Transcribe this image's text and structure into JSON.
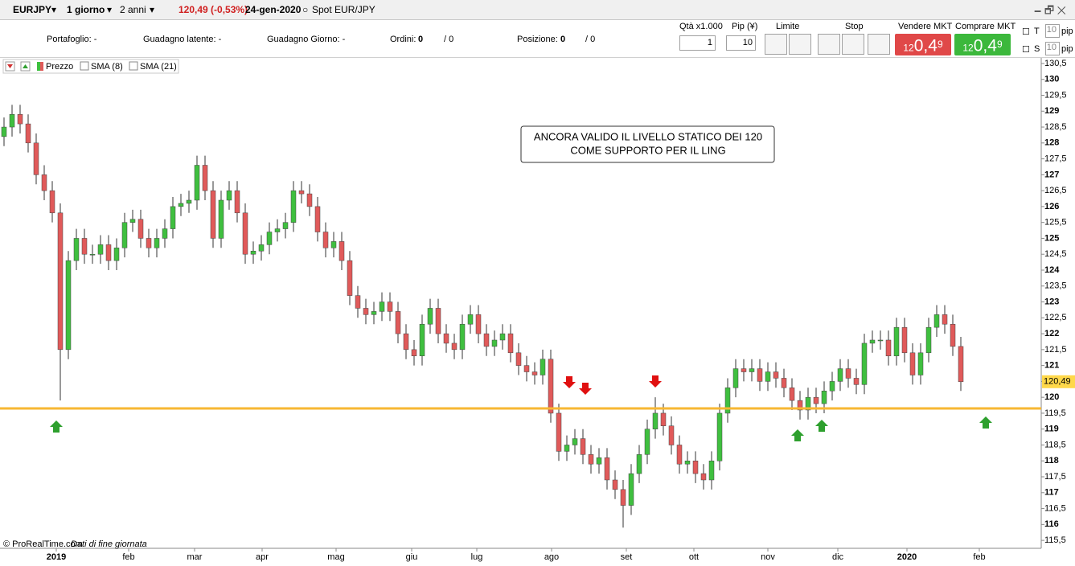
{
  "toolbar": {
    "symbol": "EURJPY",
    "interval": "1 giorno",
    "range": "2 anni",
    "last": "120,49 (-0,53%)",
    "date": "24-gen-2020",
    "instrument": "Spot EUR/JPY"
  },
  "info_bar": {
    "portfolio": "Portafoglio: -",
    "unrealized": "Guadagno latente: -",
    "daily": "Guadagno Giorno: -",
    "orders_label": "Ordini:",
    "orders": "0",
    "orders_total": "/ 0",
    "position_label": "Posizione:",
    "position": "0",
    "position_total": "/ 0"
  },
  "trade_panel": {
    "qty_label": "Qtà x1.000",
    "pip_label": "Pip (¥)",
    "qty": "1",
    "pip": "10",
    "limit": "Limite",
    "stop": "Stop",
    "sell_label": "Vendere MKT",
    "buy_label": "Comprare MKT",
    "sell_price": {
      "small": "12",
      "main": "0,4",
      "pip": "9"
    },
    "buy_price": {
      "small": "12",
      "main": "0,4",
      "pip": "9"
    },
    "t_label": "T",
    "t_pips": "10",
    "s_label": "S",
    "s_pips": "10",
    "pip_unit": "pip"
  },
  "chart_data": {
    "type": "candlestick",
    "legend": [
      "Prezzo",
      "SMA (8)",
      "SMA (21)"
    ],
    "annotation": [
      "ANCORA VALIDO IL LIVELLO STATICO DEI 120",
      "COME SUPPORTO PER IL LING"
    ],
    "source": "© ProRealTime.com",
    "note": "Dati di fine giornata",
    "up_color": "#3fbf3f",
    "down_color": "#e05a5a",
    "support": {
      "value": 119.65,
      "color": "#f7b733"
    },
    "last_price": {
      "value": 120.49,
      "label": "120,49"
    },
    "xlim": [
      -0.5,
      129
    ],
    "xticks": [
      {
        "value": 6.5,
        "label": "2019"
      },
      {
        "value": 15.5,
        "label": "feb"
      },
      {
        "value": 23.7,
        "label": "mar"
      },
      {
        "value": 32.1,
        "label": "apr"
      },
      {
        "value": 41.3,
        "label": "mag"
      },
      {
        "value": 50.7,
        "label": "giu"
      },
      {
        "value": 58.8,
        "label": "lug"
      },
      {
        "value": 68.1,
        "label": "ago"
      },
      {
        "value": 77.4,
        "label": "set"
      },
      {
        "value": 85.8,
        "label": "ott"
      },
      {
        "value": 95,
        "label": "nov"
      },
      {
        "value": 103.7,
        "label": "dic"
      },
      {
        "value": 112.3,
        "label": "2020"
      },
      {
        "value": 121.3,
        "label": "feb"
      }
    ],
    "ylim": [
      115.25,
      130.6
    ],
    "yticks": [
      {
        "value": 115.5,
        "label": "115,5"
      },
      116,
      {
        "value": 116.5,
        "label": "116,5"
      },
      117,
      {
        "value": 117.5,
        "label": "117,5"
      },
      118,
      {
        "value": 118.5,
        "label": "118,5"
      },
      119,
      {
        "value": 119.5,
        "label": "119,5"
      },
      120,
      {
        "value": 120.5,
        "label": "120,5"
      },
      121,
      {
        "value": 121.5,
        "label": "121,5"
      },
      122,
      {
        "value": 122.5,
        "label": "122,5"
      },
      123,
      {
        "value": 123.5,
        "label": "123,5"
      },
      124,
      {
        "value": 124.5,
        "label": "124,5"
      },
      125,
      {
        "value": 125.5,
        "label": "125,5"
      },
      126,
      {
        "value": 126.5,
        "label": "126,5"
      },
      127,
      {
        "value": 127.5,
        "label": "127,5"
      },
      128,
      {
        "value": 128.5,
        "label": "128,5"
      },
      129,
      {
        "value": 129.5,
        "label": "129,5"
      },
      130,
      {
        "value": 130.5,
        "label": "130,5"
      }
    ],
    "open": [
      128.2,
      128.5,
      128.9,
      128.6,
      128.0,
      127.0,
      126.5,
      125.8,
      121.5,
      124.3,
      125.0,
      124.5,
      124.5,
      124.8,
      124.3,
      124.7,
      125.5,
      125.6,
      125.0,
      124.7,
      125.0,
      125.3,
      126.0,
      126.1,
      126.2,
      127.3,
      126.5,
      125.0,
      126.2,
      126.5,
      125.8,
      124.5,
      124.6,
      124.8,
      125.2,
      125.3,
      125.5,
      126.5,
      126.4,
      126.0,
      125.2,
      124.7,
      124.9,
      124.3,
      123.2,
      122.8,
      122.6,
      122.7,
      123.0,
      122.7,
      122.0,
      121.5,
      121.3,
      122.3,
      122.8,
      122.0,
      121.7,
      121.5,
      122.3,
      122.6,
      122.0,
      121.6,
      121.8,
      122.0,
      121.4,
      121.0,
      120.8,
      120.7,
      121.2,
      119.5,
      118.3,
      118.5,
      118.7,
      118.2,
      117.9,
      118.1,
      117.4,
      117.1,
      116.6,
      117.6,
      118.2,
      119.0,
      119.5,
      119.1,
      118.5,
      117.9,
      118.0,
      117.6,
      117.4,
      118.0,
      119.5,
      120.3,
      120.9,
      120.8,
      120.9,
      120.5,
      120.8,
      120.6,
      120.3,
      119.9,
      119.6,
      120.0,
      119.8,
      120.2,
      120.5,
      120.9,
      120.6,
      120.4,
      121.7,
      121.8,
      121.8,
      121.3,
      122.2,
      121.4,
      120.7,
      121.4,
      122.2,
      122.6,
      122.3,
      121.6
    ],
    "high": [
      128.8,
      129.2,
      129.2,
      128.9,
      128.3,
      127.3,
      126.8,
      126.1,
      124.6,
      125.3,
      125.3,
      124.8,
      125.1,
      125.1,
      125.0,
      125.8,
      125.9,
      125.9,
      125.3,
      125.3,
      125.6,
      126.3,
      126.4,
      126.5,
      127.6,
      127.6,
      126.8,
      126.5,
      126.8,
      126.8,
      126.1,
      124.9,
      125.1,
      125.5,
      125.6,
      125.8,
      126.8,
      126.8,
      126.7,
      126.3,
      125.5,
      125.2,
      125.2,
      124.6,
      123.5,
      123.1,
      123.0,
      123.3,
      123.3,
      123.0,
      122.3,
      121.8,
      122.6,
      123.1,
      123.1,
      122.3,
      122.0,
      122.6,
      122.9,
      122.9,
      122.3,
      122.1,
      122.3,
      122.3,
      121.7,
      121.3,
      121.1,
      121.5,
      121.5,
      119.8,
      118.8,
      119.0,
      119.0,
      118.5,
      118.4,
      118.4,
      117.7,
      117.4,
      117.9,
      118.5,
      119.3,
      120.0,
      119.8,
      119.4,
      118.8,
      118.3,
      118.3,
      117.9,
      118.3,
      119.8,
      120.6,
      121.2,
      121.2,
      121.2,
      121.2,
      121.1,
      121.1,
      120.9,
      120.6,
      120.2,
      120.3,
      120.3,
      120.5,
      120.8,
      121.2,
      121.2,
      120.9,
      122.0,
      122.1,
      122.1,
      122.1,
      122.5,
      122.5,
      121.7,
      121.7,
      122.5,
      122.9,
      122.9,
      122.6,
      121.9
    ],
    "low": [
      127.9,
      128.2,
      128.3,
      127.7,
      126.7,
      126.2,
      125.5,
      119.9,
      121.2,
      124.0,
      124.2,
      124.2,
      124.2,
      124.0,
      124.0,
      124.4,
      125.2,
      124.7,
      124.4,
      124.4,
      124.7,
      125.0,
      125.7,
      125.8,
      125.9,
      126.2,
      124.7,
      124.7,
      125.9,
      125.5,
      124.2,
      124.2,
      124.3,
      124.5,
      124.9,
      125.0,
      125.2,
      126.1,
      125.7,
      124.9,
      124.4,
      124.4,
      124.0,
      122.9,
      122.5,
      122.3,
      122.3,
      122.4,
      122.4,
      121.7,
      121.2,
      121.0,
      121.0,
      122.0,
      121.7,
      121.4,
      121.2,
      121.2,
      122.0,
      121.7,
      121.3,
      121.3,
      121.5,
      121.1,
      120.7,
      120.5,
      120.4,
      120.4,
      119.2,
      118.0,
      118.0,
      118.2,
      117.9,
      117.6,
      117.6,
      117.1,
      116.8,
      115.9,
      116.3,
      117.3,
      117.9,
      118.7,
      118.8,
      118.2,
      117.6,
      117.6,
      117.3,
      117.1,
      117.1,
      117.7,
      119.2,
      120.0,
      120.5,
      120.5,
      120.2,
      120.2,
      120.3,
      120.0,
      119.6,
      119.3,
      119.3,
      119.5,
      119.5,
      119.9,
      120.2,
      120.3,
      120.1,
      120.1,
      121.4,
      121.5,
      121.0,
      121.0,
      121.1,
      120.4,
      120.4,
      121.1,
      121.9,
      122.0,
      121.3,
      120.2
    ],
    "close": [
      128.5,
      128.9,
      128.6,
      128.0,
      127.0,
      126.5,
      125.8,
      121.5,
      124.3,
      125.0,
      124.5,
      124.5,
      124.8,
      124.3,
      124.7,
      125.5,
      125.6,
      125.0,
      124.7,
      125.0,
      125.3,
      126.0,
      126.1,
      126.2,
      127.3,
      126.5,
      125.0,
      126.2,
      126.5,
      125.8,
      124.5,
      124.6,
      124.8,
      125.2,
      125.3,
      125.5,
      126.5,
      126.4,
      126.0,
      125.2,
      124.7,
      124.9,
      124.3,
      123.2,
      122.8,
      122.6,
      122.7,
      123.0,
      122.7,
      122.0,
      121.5,
      121.3,
      122.3,
      122.8,
      122.0,
      121.7,
      121.5,
      122.3,
      122.6,
      122.0,
      121.6,
      121.8,
      122.0,
      121.4,
      121.0,
      120.8,
      120.7,
      121.2,
      119.5,
      118.3,
      118.5,
      118.7,
      118.2,
      117.9,
      118.1,
      117.4,
      117.1,
      116.6,
      117.6,
      118.2,
      119.0,
      119.5,
      119.1,
      118.5,
      117.9,
      118.0,
      117.6,
      117.4,
      118.0,
      119.5,
      120.3,
      120.9,
      120.8,
      120.9,
      120.5,
      120.8,
      120.6,
      120.3,
      119.9,
      119.6,
      120.0,
      119.8,
      120.2,
      120.5,
      120.9,
      120.6,
      120.4,
      121.7,
      121.8,
      121.8,
      121.3,
      122.2,
      121.4,
      120.7,
      121.4,
      122.2,
      122.6,
      122.3,
      121.6,
      120.49
    ]
  }
}
